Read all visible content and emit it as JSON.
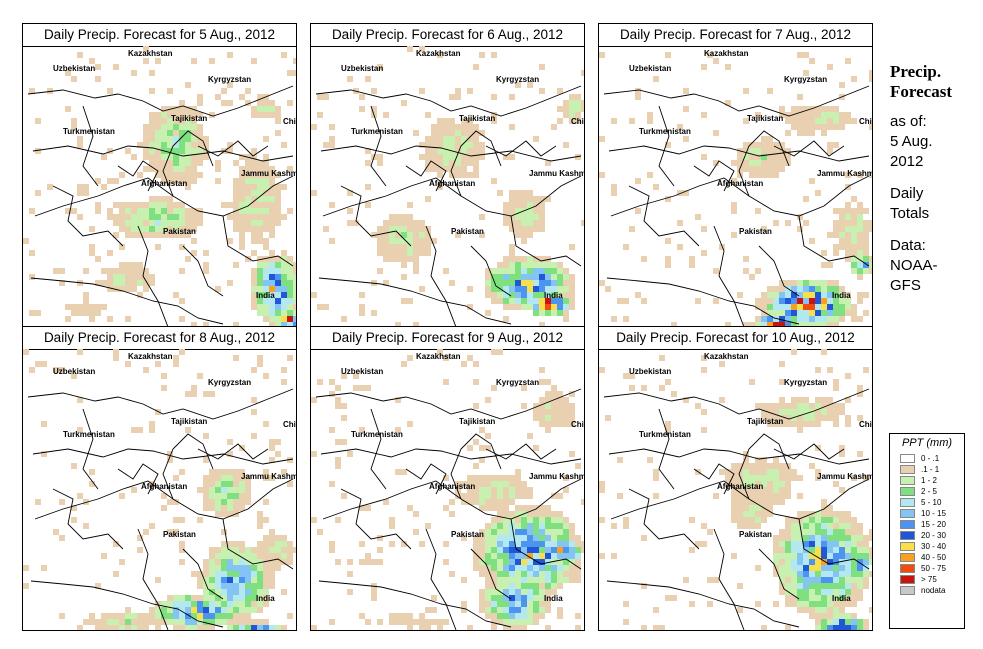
{
  "panels": [
    {
      "title": "Daily Precip. Forecast for  5 Aug., 2012",
      "pattern": "d5"
    },
    {
      "title": "Daily Precip. Forecast for  6 Aug., 2012",
      "pattern": "d6"
    },
    {
      "title": "Daily Precip. Forecast for  7 Aug., 2012",
      "pattern": "d7"
    },
    {
      "title": "Daily Precip. Forecast for  8 Aug., 2012",
      "pattern": "d8"
    },
    {
      "title": "Daily Precip. Forecast for  9 Aug., 2012",
      "pattern": "d9"
    },
    {
      "title": "Daily Precip. Forecast for  10 Aug., 2012",
      "pattern": "d10"
    }
  ],
  "map_labels": {
    "uzbekistan": "Uzbekistan",
    "kazakhstan": "Kazakhstan",
    "kyrgyzstan": "Kyrgyzstan",
    "tajikistan": "Tajikistan",
    "turkmenistan": "Turkmenistan",
    "china": "China",
    "afghanistan": "Afghanistan",
    "jammu_kashmir": "Jammu Kashmir",
    "pakistan": "Pakistan",
    "india": "India"
  },
  "sidebar": {
    "title_line1": "Precip.",
    "title_line2": "Forecast",
    "asof_line1": "as of:",
    "asof_line2": "5 Aug.",
    "asof_line3": "2012",
    "daily_line1": "Daily",
    "daily_line2": "Totals",
    "data_line1": "Data:",
    "data_line2": "NOAA-",
    "data_line3": "GFS"
  },
  "legend": {
    "title": "PPT (mm)",
    "items": [
      {
        "label": "0 - .1",
        "color": "#ffffff"
      },
      {
        "label": ".1 - 1",
        "color": "#e8d0b0"
      },
      {
        "label": "1 - 2",
        "color": "#c8f0b0"
      },
      {
        "label": "2 - 5",
        "color": "#7ee07e"
      },
      {
        "label": "5 - 10",
        "color": "#b4e8f0"
      },
      {
        "label": "10 - 15",
        "color": "#84c4f4"
      },
      {
        "label": "15 - 20",
        "color": "#4c94f0"
      },
      {
        "label": "20 - 30",
        "color": "#2056d8"
      },
      {
        "label": "30 - 40",
        "color": "#f8e04c"
      },
      {
        "label": "40 - 50",
        "color": "#f8a020"
      },
      {
        "label": "50 - 75",
        "color": "#f04c10"
      },
      {
        "label": "> 75",
        "color": "#c81410"
      },
      {
        "label": "nodata",
        "color": "#c8c8c8"
      }
    ]
  }
}
